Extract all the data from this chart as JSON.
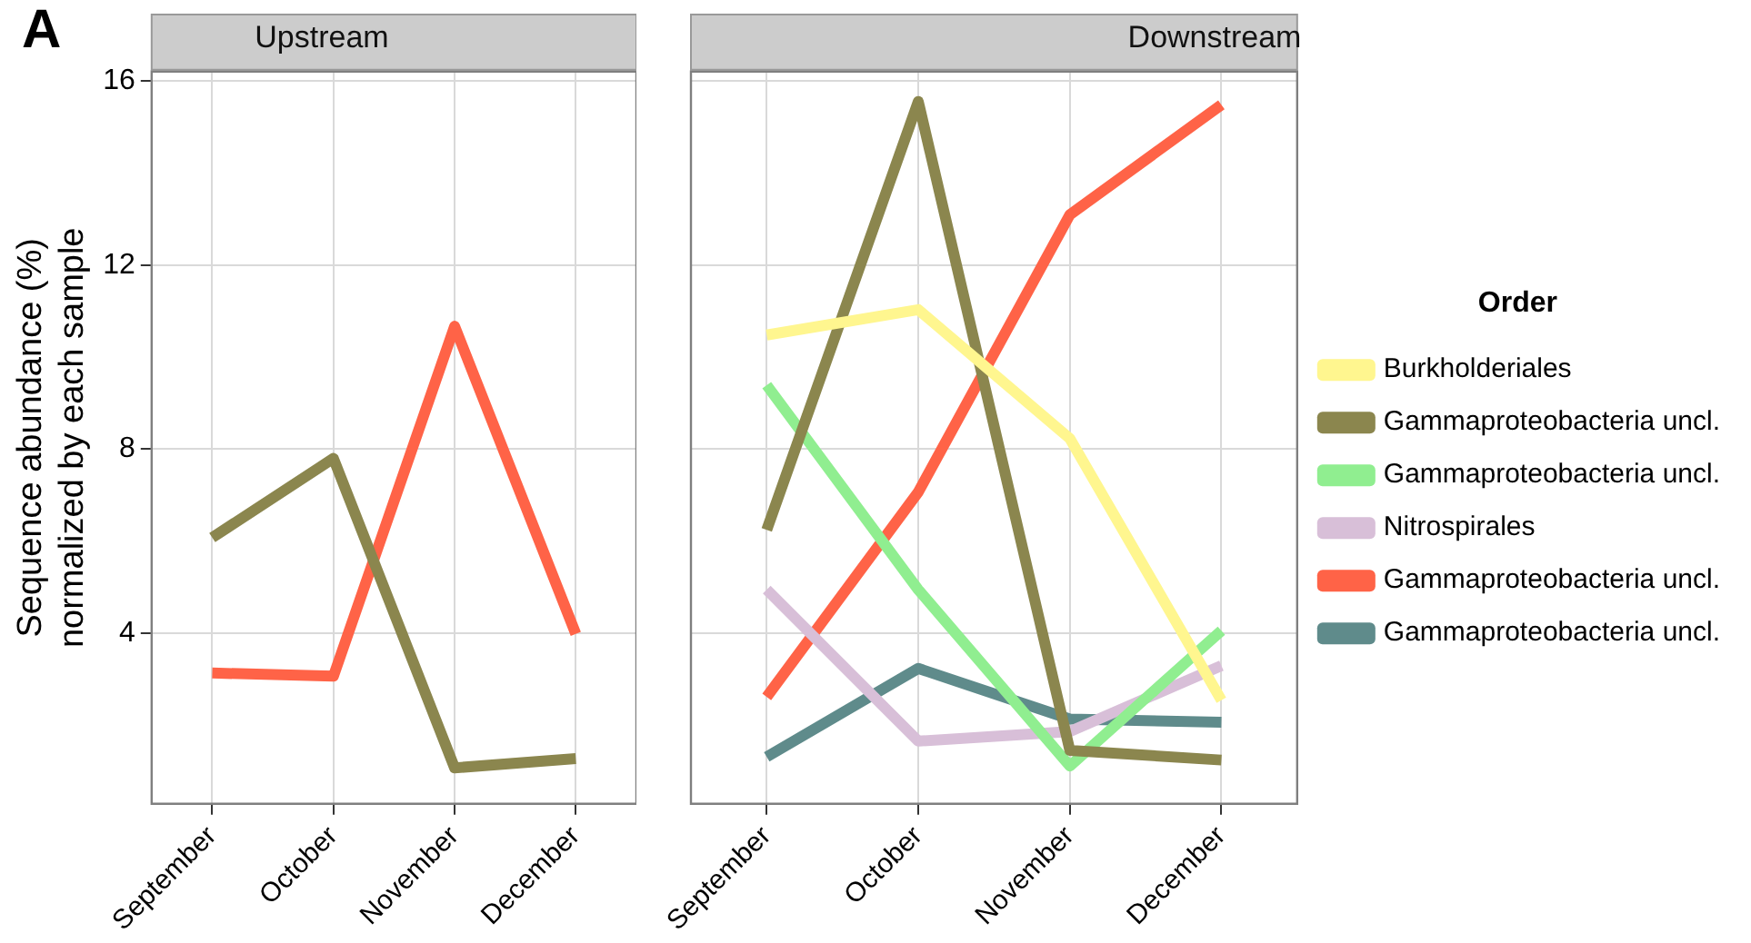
{
  "chart_data": [
    {
      "type": "line",
      "title": "Upstream",
      "ylabel": "Sequence abundance (%)\nnormalized by each sample",
      "annotations": [
        "A"
      ],
      "categories": [
        "September",
        "October",
        "November",
        "December"
      ],
      "series": [
        {
          "color": "#8b864e",
          "values": [
            6.08,
            7.8,
            1.08,
            1.28
          ]
        },
        {
          "color": "#ff6347",
          "values": [
            3.14,
            3.07,
            10.67,
            3.99
          ]
        }
      ],
      "ylim": [
        0.3,
        16.2
      ],
      "yticks": [
        4,
        8,
        12,
        16
      ],
      "grid": true,
      "legend": false,
      "marker": "none",
      "line_style": "solid"
    },
    {
      "type": "line",
      "title": "Downstream",
      "legend_title": "Order",
      "categories": [
        "September",
        "October",
        "November",
        "December"
      ],
      "series": [
        {
          "name": "Burkholderiales",
          "color": "#fff68f",
          "values": [
            10.48,
            11.03,
            8.23,
            2.55
          ]
        },
        {
          "name": "Gammaproteobacteria uncl.",
          "color": "#8b864e",
          "values": [
            6.25,
            15.55,
            1.46,
            1.25
          ]
        },
        {
          "name": "Gammaproteobacteria uncl.",
          "color": "#90ee90",
          "values": [
            9.39,
            4.95,
            1.12,
            4.06
          ]
        },
        {
          "name": "Nitrospirales",
          "color": "#d8bfd8",
          "values": [
            4.95,
            1.66,
            1.87,
            3.3
          ]
        },
        {
          "name": "Gammaproteobacteria uncl.",
          "color": "#ff6347",
          "values": [
            2.62,
            7.07,
            13.09,
            15.48
          ]
        },
        {
          "name": "Gammaproteobacteria uncl.",
          "color": "#5f8b8b",
          "values": [
            1.32,
            3.24,
            2.14,
            2.07
          ]
        }
      ],
      "ylim": [
        0.3,
        16.2
      ],
      "yticks": [
        4,
        8,
        12,
        16
      ],
      "grid": true,
      "legend": "right",
      "tick_labels": "x",
      "marker": "none",
      "line_style": "solid"
    }
  ]
}
